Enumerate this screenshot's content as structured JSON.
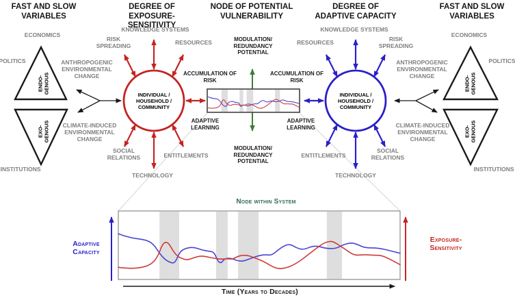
{
  "colors": {
    "red": "#C32422",
    "blue": "#2B1FC8",
    "line_red": "#CE3B38",
    "line_blue": "#4A44D4",
    "green": "#3E7C37",
    "gray_text": "#7F7F7F",
    "teal": "#2E6B5E",
    "band": "#DEDEDE",
    "black": "#1A1A1A",
    "box_border": "#404040",
    "chart_border": "#8A8A8A",
    "connector": "#D6D6D6"
  },
  "headers": {
    "fast_and_slow": "FAST AND SLOW VARIABLES",
    "exposure": "DEGREE OF EXPOSURE-SENSITIVITY",
    "node": "NODE OF POTENTIAL VULNERABILITY",
    "adaptive": "DEGREE OF ADAPTIVE CAPACITY"
  },
  "variables": {
    "economics": "ECONOMICS",
    "politics": "POLITICS",
    "institutions": "INSTITUTIONS",
    "endogenous": "ENDO-GENOUS",
    "exogenous": "EXO-GENOUS"
  },
  "drivers": {
    "anthropogenic": "ANTHROPOGENIC ENVIRONMENTAL CHANGE",
    "climate": "CLIMATE-INDUCED ENVIRONMENTAL CHANGE"
  },
  "factors": {
    "knowledge": "KNOWLEDGE SYSTEMS",
    "risk_spreading": "RISK SPREADING",
    "resources": "RESOURCES",
    "social": "SOCIAL RELATIONS",
    "technology": "TECHNOLOGY",
    "entitlements": "ENTITLEMENTS"
  },
  "node": {
    "accumulation": "ACCUMULATION OF RISK",
    "adaptive_learning": "ADAPTIVE LEARNING",
    "modulation": "MODULATION/ REDUNDANCY POTENTIAL",
    "community": "INDIVIDUAL / HOUSEHOLD / COMMUNITY"
  },
  "chart": {
    "title": "Node within System",
    "y_left": "Adaptive Capacity",
    "y_right": "Exposure-Sensitivity",
    "x_label": "Time (Years to Decades)"
  },
  "chart_data": {
    "type": "line",
    "title": "Node within System",
    "xlabel": "Time (Years to Decades)",
    "ylabel_left": "Adaptive Capacity",
    "ylabel_right": "Exposure-Sensitivity",
    "axes_numeric": false,
    "note": "Conceptual curves; coordinates normalized 0-1, y measured downward from panel top. Gray bands mark disturbance periods.",
    "bands": [
      [
        0.146,
        0.216
      ],
      [
        0.347,
        0.388
      ],
      [
        0.425,
        0.498
      ],
      [
        0.74,
        0.794
      ]
    ],
    "series": [
      {
        "name": "Adaptive Capacity",
        "color": "line_blue",
        "points": [
          [
            0.0,
            0.33
          ],
          [
            0.04,
            0.39
          ],
          [
            0.1,
            0.42
          ],
          [
            0.126,
            0.49
          ],
          [
            0.146,
            0.62
          ],
          [
            0.167,
            0.72
          ],
          [
            0.191,
            0.77
          ],
          [
            0.203,
            0.75
          ],
          [
            0.219,
            0.59
          ],
          [
            0.243,
            0.54
          ],
          [
            0.268,
            0.53
          ],
          [
            0.296,
            0.57
          ],
          [
            0.32,
            0.59
          ],
          [
            0.34,
            0.6
          ],
          [
            0.353,
            0.74
          ],
          [
            0.365,
            0.77
          ],
          [
            0.377,
            0.7
          ],
          [
            0.397,
            0.69
          ],
          [
            0.422,
            0.73
          ],
          [
            0.442,
            0.74
          ],
          [
            0.462,
            0.71
          ],
          [
            0.494,
            0.66
          ],
          [
            0.519,
            0.64
          ],
          [
            0.543,
            0.65
          ],
          [
            0.559,
            0.6
          ],
          [
            0.583,
            0.52
          ],
          [
            0.608,
            0.48
          ],
          [
            0.632,
            0.54
          ],
          [
            0.656,
            0.57
          ],
          [
            0.697,
            0.5
          ],
          [
            0.737,
            0.55
          ],
          [
            0.773,
            0.55
          ],
          [
            0.794,
            0.5
          ],
          [
            0.826,
            0.46
          ],
          [
            0.85,
            0.49
          ],
          [
            0.875,
            0.54
          ],
          [
            0.923,
            0.54
          ],
          [
            0.972,
            0.59
          ],
          [
            1.0,
            0.62
          ]
        ]
      },
      {
        "name": "Exposure-Sensitivity",
        "color": "line_red",
        "points": [
          [
            0.0,
            0.83
          ],
          [
            0.04,
            0.85
          ],
          [
            0.09,
            0.83
          ],
          [
            0.122,
            0.77
          ],
          [
            0.142,
            0.65
          ],
          [
            0.155,
            0.5
          ],
          [
            0.167,
            0.45
          ],
          [
            0.179,
            0.47
          ],
          [
            0.195,
            0.59
          ],
          [
            0.211,
            0.67
          ],
          [
            0.227,
            0.7
          ],
          [
            0.243,
            0.72
          ],
          [
            0.26,
            0.7
          ],
          [
            0.28,
            0.67
          ],
          [
            0.296,
            0.66
          ],
          [
            0.312,
            0.67
          ],
          [
            0.333,
            0.69
          ],
          [
            0.349,
            0.7
          ],
          [
            0.369,
            0.71
          ],
          [
            0.389,
            0.7
          ],
          [
            0.405,
            0.71
          ],
          [
            0.422,
            0.67
          ],
          [
            0.438,
            0.65
          ],
          [
            0.458,
            0.65
          ],
          [
            0.478,
            0.68
          ],
          [
            0.498,
            0.71
          ],
          [
            0.519,
            0.75
          ],
          [
            0.543,
            0.81
          ],
          [
            0.559,
            0.84
          ],
          [
            0.575,
            0.85
          ],
          [
            0.591,
            0.84
          ],
          [
            0.608,
            0.82
          ],
          [
            0.632,
            0.77
          ],
          [
            0.656,
            0.7
          ],
          [
            0.68,
            0.62
          ],
          [
            0.705,
            0.54
          ],
          [
            0.725,
            0.48
          ],
          [
            0.741,
            0.45
          ],
          [
            0.757,
            0.44
          ],
          [
            0.773,
            0.47
          ],
          [
            0.79,
            0.52
          ],
          [
            0.802,
            0.55
          ],
          [
            0.818,
            0.6
          ],
          [
            0.834,
            0.64
          ],
          [
            0.85,
            0.65
          ],
          [
            0.875,
            0.64
          ],
          [
            0.907,
            0.65
          ],
          [
            0.931,
            0.65
          ],
          [
            0.955,
            0.69
          ],
          [
            0.978,
            0.74
          ],
          [
            1.0,
            0.79
          ]
        ]
      }
    ]
  }
}
